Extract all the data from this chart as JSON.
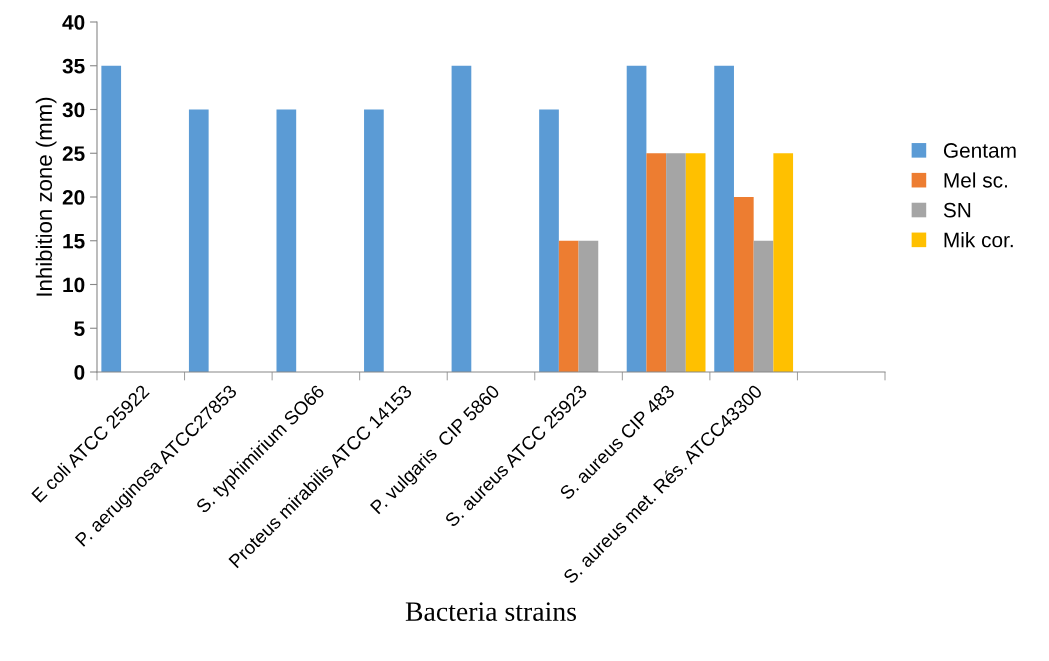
{
  "chart_data": {
    "type": "bar",
    "xlabel": "Bacteria strains",
    "ylabel": "Inhibition zone (mm)",
    "categories": [
      "E coli ATCC 25922",
      "P. aeruginosa ATCC27853",
      "S. typhimirium SO66",
      "Proteus mirabilis ATCC 14153",
      "P. vulgaris  CIP 5860",
      "S. aureus ATCC 25923",
      "S. aureus CIP 483",
      "S. aureus met. Rés. ATCC43300",
      null
    ],
    "series": [
      {
        "name": "Gentam",
        "color": "#5b9bd5",
        "values": [
          35,
          30,
          30,
          30,
          35,
          30,
          35,
          35,
          null
        ]
      },
      {
        "name": "Mel sc.",
        "color": "#ed7d31",
        "values": [
          null,
          null,
          null,
          null,
          null,
          15,
          25,
          20,
          null
        ]
      },
      {
        "name": "SN",
        "color": "#a5a5a5",
        "values": [
          null,
          null,
          null,
          null,
          null,
          15,
          25,
          15,
          null
        ]
      },
      {
        "name": "Mik cor.",
        "color": "#ffc000",
        "values": [
          null,
          null,
          null,
          null,
          null,
          null,
          25,
          25,
          null
        ]
      }
    ],
    "ylim": [
      0,
      40
    ],
    "yticks": [
      0,
      5,
      10,
      15,
      20,
      25,
      30,
      35,
      40
    ],
    "grid": false,
    "legend": "right"
  }
}
